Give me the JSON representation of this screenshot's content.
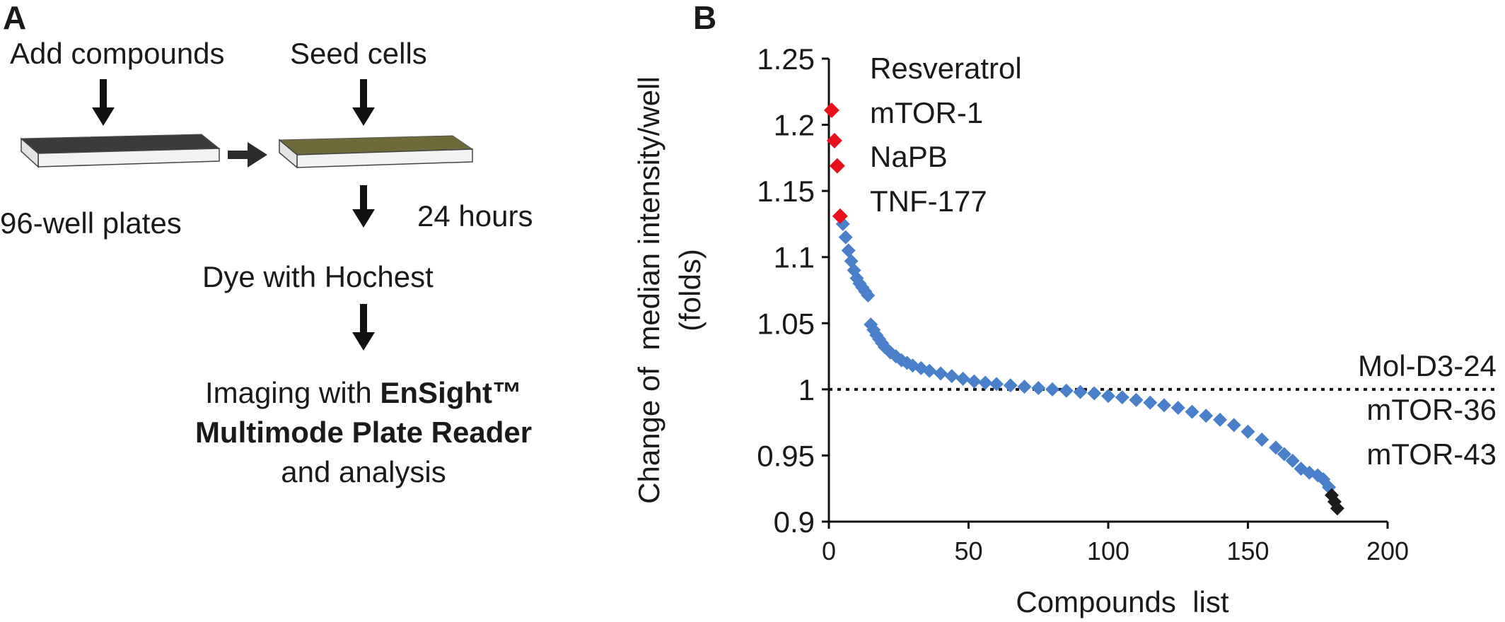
{
  "panel_a": {
    "letter": "A",
    "step_add": "Add compounds",
    "step_seed": "Seed cells",
    "plate_label": "96-well plates",
    "time_label": "24 hours",
    "dye_label": "Dye with Hochest",
    "imaging_prefix": "Imaging with ",
    "imaging_bold": "EnSight™",
    "imaging_line2": "Multimode Plate Reader",
    "imaging_line3": "and analysis"
  },
  "panel_b": {
    "letter": "B"
  },
  "chart_data": {
    "type": "scatter",
    "title": "",
    "xlabel": "Compounds  list",
    "ylabel_line1": "Change of  median intensity/well",
    "ylabel_line2": "(folds)",
    "xlim": [
      0,
      200
    ],
    "ylim": [
      0.9,
      1.25
    ],
    "x_ticks": [
      0,
      50,
      100,
      150,
      200
    ],
    "x_tick_labels": [
      "0",
      "50",
      "100",
      "150",
      "200"
    ],
    "y_ticks": [
      0.9,
      0.95,
      1.0,
      1.05,
      1.1,
      1.15,
      1.2,
      1.25
    ],
    "y_tick_labels": [
      "0.9",
      "0.95",
      "1",
      "1.05",
      "1.1",
      "1.15",
      "1.2",
      "1.25"
    ],
    "reference_line": 1.0,
    "colors": {
      "highlight": "#e8101a",
      "main": "#4a7fc9",
      "low": "#1b1b1b"
    },
    "annotations_top": [
      "Resveratrol",
      "mTOR-1",
      "NaPB",
      "TNF-177"
    ],
    "annotations_bottom": [
      "Mol-D3-24",
      "mTOR-36",
      "mTOR-43"
    ],
    "highlight_points": [
      {
        "x": 1,
        "y": 1.211
      },
      {
        "x": 2,
        "y": 1.188
      },
      {
        "x": 3,
        "y": 1.169
      },
      {
        "x": 4,
        "y": 1.131
      }
    ],
    "low_points": [
      {
        "x": 180,
        "y": 0.92
      },
      {
        "x": 181,
        "y": 0.915
      },
      {
        "x": 182,
        "y": 0.91
      }
    ],
    "main_curve": [
      {
        "x": 5,
        "y": 1.125
      },
      {
        "x": 6,
        "y": 1.115
      },
      {
        "x": 7,
        "y": 1.105
      },
      {
        "x": 8,
        "y": 1.097
      },
      {
        "x": 9,
        "y": 1.09
      },
      {
        "x": 10,
        "y": 1.084
      },
      {
        "x": 11,
        "y": 1.08
      },
      {
        "x": 12,
        "y": 1.077
      },
      {
        "x": 13,
        "y": 1.074
      },
      {
        "x": 14,
        "y": 1.071
      },
      {
        "x": 15,
        "y": 1.049
      },
      {
        "x": 16,
        "y": 1.045
      },
      {
        "x": 17,
        "y": 1.041
      },
      {
        "x": 18,
        "y": 1.038
      },
      {
        "x": 19,
        "y": 1.035
      },
      {
        "x": 20,
        "y": 1.032
      },
      {
        "x": 22,
        "y": 1.028
      },
      {
        "x": 24,
        "y": 1.025
      },
      {
        "x": 26,
        "y": 1.022
      },
      {
        "x": 28,
        "y": 1.02
      },
      {
        "x": 30,
        "y": 1.018
      },
      {
        "x": 33,
        "y": 1.016
      },
      {
        "x": 36,
        "y": 1.014
      },
      {
        "x": 40,
        "y": 1.012
      },
      {
        "x": 44,
        "y": 1.01
      },
      {
        "x": 48,
        "y": 1.008
      },
      {
        "x": 52,
        "y": 1.006
      },
      {
        "x": 56,
        "y": 1.005
      },
      {
        "x": 60,
        "y": 1.004
      },
      {
        "x": 65,
        "y": 1.003
      },
      {
        "x": 70,
        "y": 1.002
      },
      {
        "x": 75,
        "y": 1.001
      },
      {
        "x": 80,
        "y": 1.0
      },
      {
        "x": 85,
        "y": 0.999
      },
      {
        "x": 90,
        "y": 0.998
      },
      {
        "x": 95,
        "y": 0.997
      },
      {
        "x": 100,
        "y": 0.995
      },
      {
        "x": 105,
        "y": 0.994
      },
      {
        "x": 110,
        "y": 0.992
      },
      {
        "x": 115,
        "y": 0.99
      },
      {
        "x": 120,
        "y": 0.988
      },
      {
        "x": 125,
        "y": 0.986
      },
      {
        "x": 130,
        "y": 0.983
      },
      {
        "x": 135,
        "y": 0.98
      },
      {
        "x": 140,
        "y": 0.977
      },
      {
        "x": 145,
        "y": 0.973
      },
      {
        "x": 150,
        "y": 0.968
      },
      {
        "x": 155,
        "y": 0.962
      },
      {
        "x": 160,
        "y": 0.956
      },
      {
        "x": 163,
        "y": 0.951
      },
      {
        "x": 166,
        "y": 0.946
      },
      {
        "x": 169,
        "y": 0.94
      },
      {
        "x": 172,
        "y": 0.937
      },
      {
        "x": 175,
        "y": 0.935
      },
      {
        "x": 177,
        "y": 0.932
      },
      {
        "x": 179,
        "y": 0.926
      }
    ]
  }
}
